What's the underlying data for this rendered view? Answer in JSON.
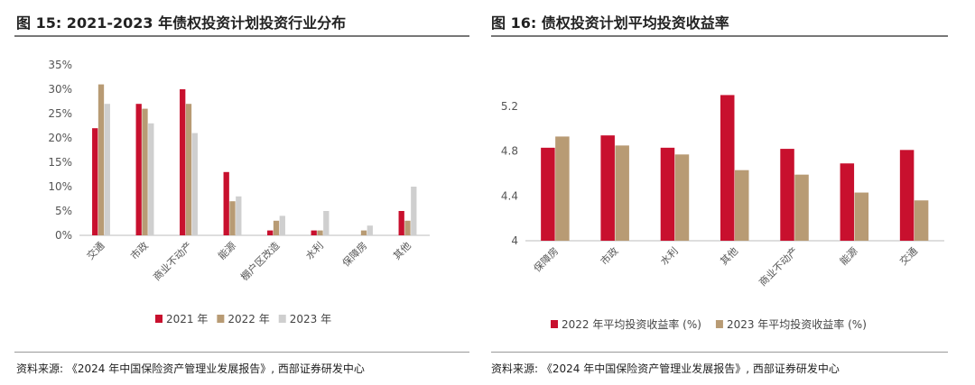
{
  "left": {
    "fig_title": "图 15:  2021-2023 年债权投资计划投资行业分布",
    "source": "资料来源:  《2024 年中国保险资产管理业发展报告》, 西部证券研发中心"
  },
  "right": {
    "fig_title": "图 16:  债权投资计划平均投资收益率",
    "source": "资料来源:  《2024 年中国保险资产管理业发展报告》, 西部证券研发中心"
  },
  "colors": {
    "red": "#c8102e",
    "tan": "#b89b74",
    "gray": "#cfcfcf"
  },
  "chart_data": [
    {
      "type": "bar",
      "title": "2021-2023 年债权投资计划投资行业分布",
      "categories": [
        "交通",
        "市政",
        "商业不动产",
        "能源",
        "棚户区改造",
        "水利",
        "保障房",
        "其他"
      ],
      "series": [
        {
          "name": "2021 年",
          "color": "#c8102e",
          "values": [
            22,
            27,
            30,
            13,
            1,
            1,
            0,
            5
          ]
        },
        {
          "name": "2022 年",
          "color": "#b89b74",
          "values": [
            31,
            26,
            27,
            7,
            3,
            1,
            1,
            3
          ]
        },
        {
          "name": "2023 年",
          "color": "#cfcfcf",
          "values": [
            27,
            23,
            21,
            8,
            4,
            5,
            2,
            10
          ]
        }
      ],
      "yticks": [
        "0%",
        "5%",
        "10%",
        "15%",
        "20%",
        "25%",
        "30%",
        "35%"
      ],
      "ylim": [
        0,
        35
      ],
      "legend": "bottom",
      "grid": false
    },
    {
      "type": "bar",
      "title": "债权投资计划平均投资收益率",
      "categories": [
        "保障房",
        "市政",
        "水利",
        "其他",
        "商业不动产",
        "能源",
        "交通"
      ],
      "series": [
        {
          "name": "2022 年平均投资收益率 (%)",
          "color": "#c8102e",
          "values": [
            4.83,
            4.94,
            4.83,
            5.3,
            4.82,
            4.69,
            4.81
          ]
        },
        {
          "name": "2023 年平均投资收益率 (%)",
          "color": "#b89b74",
          "values": [
            4.93,
            4.85,
            4.77,
            4.63,
            4.59,
            4.43,
            4.36
          ]
        }
      ],
      "yticks": [
        "4",
        "4.4",
        "4.8",
        "5.2"
      ],
      "ylim": [
        4,
        5.4
      ],
      "legend": "bottom",
      "grid": false
    }
  ]
}
